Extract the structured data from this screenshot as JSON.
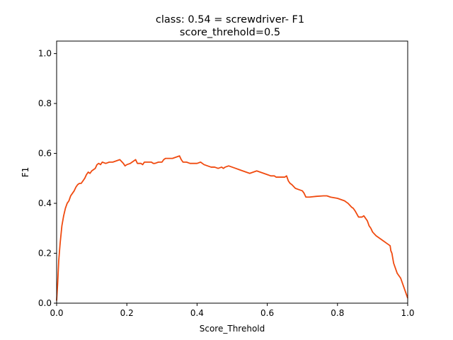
{
  "chart_data": {
    "type": "line",
    "title_line1": "class: 0.54 = screwdriver- F1",
    "title_line2": "score_threhold=0.5",
    "xlabel": "Score_Threhold",
    "ylabel": "F1",
    "xlim": [
      0,
      1
    ],
    "ylim": [
      0,
      1.05
    ],
    "grid": false,
    "line_color": "#f04a0f",
    "x_ticks": [
      {
        "value": 0.0,
        "label": "0.0"
      },
      {
        "value": 0.2,
        "label": "0.2"
      },
      {
        "value": 0.4,
        "label": "0.4"
      },
      {
        "value": 0.6,
        "label": "0.6"
      },
      {
        "value": 0.8,
        "label": "0.8"
      },
      {
        "value": 1.0,
        "label": "1.0"
      }
    ],
    "y_ticks": [
      {
        "value": 0.0,
        "label": "0.0"
      },
      {
        "value": 0.2,
        "label": "0.2"
      },
      {
        "value": 0.4,
        "label": "0.4"
      },
      {
        "value": 0.6,
        "label": "0.6"
      },
      {
        "value": 0.8,
        "label": "0.8"
      },
      {
        "value": 1.0,
        "label": "1.0"
      }
    ],
    "series": [
      {
        "x": [
          0.0,
          0.003,
          0.006,
          0.01,
          0.015,
          0.02,
          0.025,
          0.03,
          0.035,
          0.04,
          0.045,
          0.05,
          0.055,
          0.06,
          0.065,
          0.07,
          0.075,
          0.08,
          0.085,
          0.09,
          0.095,
          0.1,
          0.11,
          0.115,
          0.12,
          0.125,
          0.13,
          0.14,
          0.15,
          0.16,
          0.17,
          0.18,
          0.19,
          0.195,
          0.2,
          0.21,
          0.22,
          0.225,
          0.23,
          0.24,
          0.245,
          0.25,
          0.26,
          0.27,
          0.275,
          0.28,
          0.29,
          0.3,
          0.305,
          0.31,
          0.32,
          0.33,
          0.34,
          0.35,
          0.355,
          0.36,
          0.365,
          0.37,
          0.38,
          0.39,
          0.4,
          0.41,
          0.42,
          0.43,
          0.44,
          0.45,
          0.46,
          0.47,
          0.475,
          0.48,
          0.49,
          0.5,
          0.51,
          0.52,
          0.53,
          0.54,
          0.55,
          0.56,
          0.57,
          0.58,
          0.59,
          0.6,
          0.61,
          0.62,
          0.625,
          0.63,
          0.64,
          0.65,
          0.655,
          0.66,
          0.665,
          0.67,
          0.68,
          0.69,
          0.7,
          0.705,
          0.71,
          0.72,
          0.74,
          0.76,
          0.77,
          0.78,
          0.8,
          0.82,
          0.83,
          0.84,
          0.845,
          0.85,
          0.86,
          0.87,
          0.875,
          0.88,
          0.885,
          0.89,
          0.895,
          0.9,
          0.91,
          0.92,
          0.93,
          0.94,
          0.945,
          0.95,
          0.952,
          0.955,
          0.96,
          0.965,
          0.97,
          0.98,
          0.99,
          1.0
        ],
        "y": [
          0.01,
          0.08,
          0.17,
          0.24,
          0.31,
          0.35,
          0.38,
          0.4,
          0.41,
          0.43,
          0.44,
          0.45,
          0.465,
          0.475,
          0.48,
          0.48,
          0.49,
          0.5,
          0.515,
          0.525,
          0.52,
          0.53,
          0.54,
          0.555,
          0.56,
          0.555,
          0.565,
          0.56,
          0.565,
          0.565,
          0.57,
          0.575,
          0.56,
          0.55,
          0.555,
          0.56,
          0.57,
          0.575,
          0.56,
          0.56,
          0.555,
          0.565,
          0.565,
          0.565,
          0.56,
          0.56,
          0.565,
          0.565,
          0.575,
          0.58,
          0.58,
          0.58,
          0.585,
          0.59,
          0.575,
          0.565,
          0.565,
          0.565,
          0.56,
          0.56,
          0.56,
          0.565,
          0.555,
          0.55,
          0.545,
          0.545,
          0.54,
          0.545,
          0.54,
          0.545,
          0.55,
          0.545,
          0.54,
          0.535,
          0.53,
          0.525,
          0.52,
          0.525,
          0.53,
          0.525,
          0.52,
          0.515,
          0.51,
          0.51,
          0.505,
          0.505,
          0.505,
          0.505,
          0.51,
          0.49,
          0.48,
          0.475,
          0.46,
          0.455,
          0.45,
          0.44,
          0.425,
          0.425,
          0.428,
          0.43,
          0.43,
          0.425,
          0.42,
          0.41,
          0.4,
          0.385,
          0.38,
          0.37,
          0.345,
          0.345,
          0.35,
          0.34,
          0.33,
          0.31,
          0.3,
          0.285,
          0.27,
          0.26,
          0.25,
          0.24,
          0.235,
          0.23,
          0.21,
          0.2,
          0.16,
          0.14,
          0.12,
          0.1,
          0.06,
          0.02
        ]
      }
    ]
  }
}
